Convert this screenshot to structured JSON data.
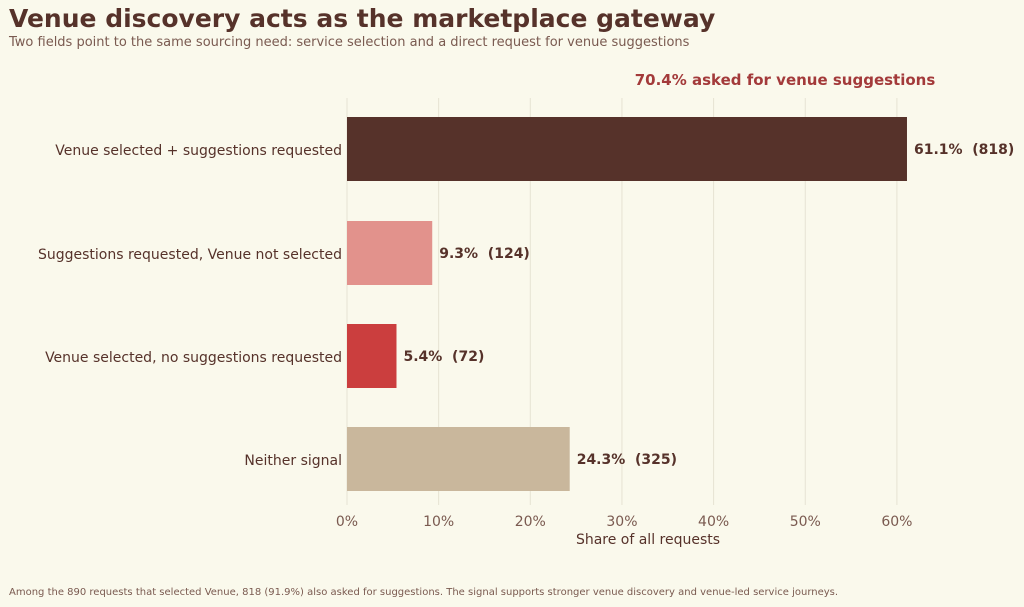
{
  "title": "Venue discovery acts as the marketplace gateway",
  "subtitle": "Two fields point to the same sourcing need: service selection and a direct request for venue suggestions",
  "footnote": "Among the 890 requests that selected Venue, 818 (91.9%) also asked for suggestions. The signal supports stronger venue discovery and venue-led service journeys.",
  "chart_data": {
    "type": "bar",
    "orientation": "horizontal",
    "categories": [
      "Venue selected + suggestions requested",
      "Suggestions requested, Venue not selected",
      "Venue selected, no suggestions requested",
      "Neither signal"
    ],
    "values": [
      61.1,
      9.3,
      5.4,
      24.3
    ],
    "counts": [
      818,
      124,
      72,
      325
    ],
    "data_labels": [
      "61.1%  (818)",
      "9.3%  (124)",
      "5.4%  (72)",
      "24.3%  (325)"
    ],
    "colors": [
      "#56322A",
      "#E2928C",
      "#CB3E3E",
      "#C9B79C"
    ],
    "xlabel": "Share of all requests",
    "xlim": [
      0,
      66
    ],
    "xticks": [
      0,
      10,
      20,
      30,
      40,
      50,
      60
    ],
    "xtick_labels": [
      "0%",
      "10%",
      "20%",
      "30%",
      "40%",
      "50%",
      "60%"
    ],
    "grid": "vertical",
    "annotation": "70.4% asked for venue suggestions",
    "annotation_color": "#A33A3A"
  }
}
